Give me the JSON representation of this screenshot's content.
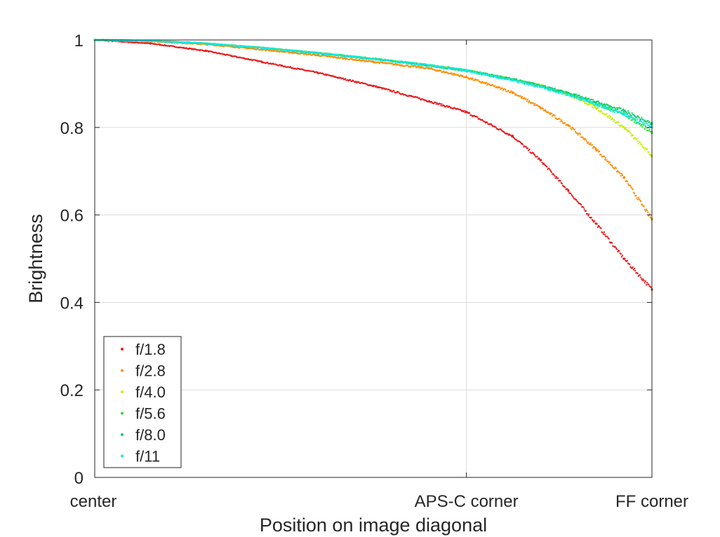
{
  "chart_data": {
    "type": "scatter",
    "title": "",
    "xlabel": "Position on image diagonal",
    "ylabel": "Brightness",
    "xlim": [
      0,
      1
    ],
    "ylim": [
      0,
      1
    ],
    "x_ticks": [
      {
        "value": 0,
        "label": "center"
      },
      {
        "value": 0.667,
        "label": "APS-C corner"
      },
      {
        "value": 1,
        "label": "FF corner"
      }
    ],
    "y_ticks": [
      {
        "value": 0,
        "label": "0"
      },
      {
        "value": 0.2,
        "label": "0.2"
      },
      {
        "value": 0.4,
        "label": "0.4"
      },
      {
        "value": 0.6,
        "label": "0.6"
      },
      {
        "value": 0.8,
        "label": "0.8"
      },
      {
        "value": 1,
        "label": "1"
      }
    ],
    "grid": true,
    "legend_position": "bottom-left",
    "series": [
      {
        "name": "f/1.8",
        "color": "#e8181a",
        "x": [
          0,
          0.1,
          0.2,
          0.3,
          0.4,
          0.5,
          0.6,
          0.667,
          0.75,
          0.8,
          0.85,
          0.9,
          0.95,
          1.0
        ],
        "y": [
          1.0,
          0.992,
          0.975,
          0.95,
          0.925,
          0.895,
          0.86,
          0.835,
          0.78,
          0.725,
          0.655,
          0.58,
          0.5,
          0.43
        ]
      },
      {
        "name": "f/2.8",
        "color": "#ff8c00",
        "x": [
          0,
          0.1,
          0.2,
          0.3,
          0.4,
          0.5,
          0.6,
          0.667,
          0.75,
          0.8,
          0.85,
          0.9,
          0.95,
          1.0
        ],
        "y": [
          1.0,
          0.997,
          0.99,
          0.978,
          0.965,
          0.95,
          0.935,
          0.915,
          0.88,
          0.845,
          0.805,
          0.75,
          0.685,
          0.59
        ]
      },
      {
        "name": "f/4.0",
        "color": "#c8ee00",
        "x": [
          0,
          0.1,
          0.2,
          0.3,
          0.4,
          0.5,
          0.6,
          0.667,
          0.75,
          0.8,
          0.85,
          0.9,
          0.95,
          1.0
        ],
        "y": [
          1.0,
          0.998,
          0.992,
          0.982,
          0.97,
          0.957,
          0.942,
          0.93,
          0.91,
          0.895,
          0.877,
          0.845,
          0.8,
          0.735
        ]
      },
      {
        "name": "f/5.6",
        "color": "#2ee02e",
        "x": [
          0,
          0.1,
          0.2,
          0.3,
          0.4,
          0.5,
          0.6,
          0.667,
          0.75,
          0.8,
          0.85,
          0.9,
          0.95,
          1.0
        ],
        "y": [
          1.0,
          0.998,
          0.992,
          0.982,
          0.97,
          0.957,
          0.942,
          0.93,
          0.91,
          0.895,
          0.878,
          0.855,
          0.83,
          0.79
        ]
      },
      {
        "name": "f/8.0",
        "color": "#10cc70",
        "x": [
          0,
          0.1,
          0.2,
          0.3,
          0.4,
          0.5,
          0.6,
          0.667,
          0.75,
          0.8,
          0.85,
          0.9,
          0.95,
          1.0
        ],
        "y": [
          1.0,
          0.998,
          0.992,
          0.982,
          0.97,
          0.957,
          0.942,
          0.93,
          0.91,
          0.895,
          0.878,
          0.858,
          0.838,
          0.808
        ]
      },
      {
        "name": "f/11",
        "color": "#17e8e8",
        "x": [
          0,
          0.1,
          0.2,
          0.3,
          0.4,
          0.5,
          0.6,
          0.667,
          0.75,
          0.8,
          0.85,
          0.9,
          0.95,
          1.0
        ],
        "y": [
          1.0,
          0.998,
          0.992,
          0.982,
          0.97,
          0.957,
          0.942,
          0.93,
          0.908,
          0.893,
          0.875,
          0.853,
          0.83,
          0.8
        ]
      }
    ]
  }
}
